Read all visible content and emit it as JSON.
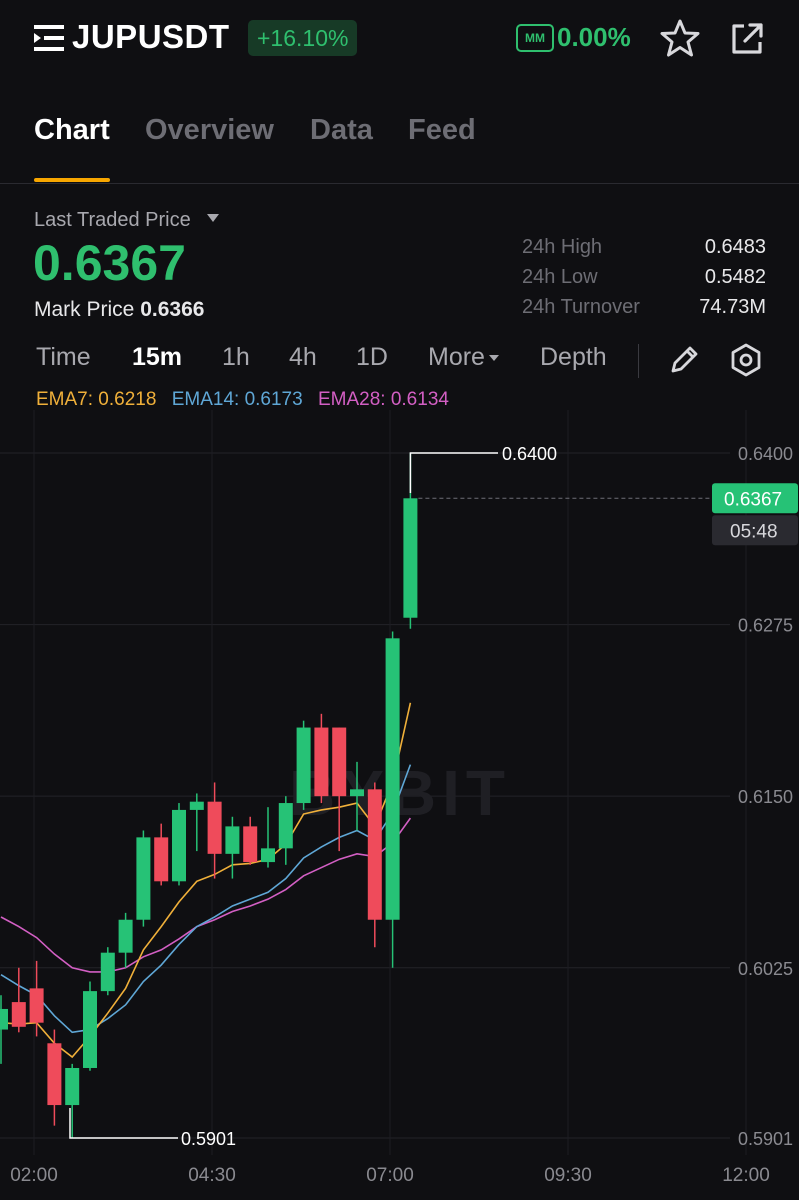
{
  "header": {
    "symbol": "JUPUSDT",
    "change_pct": "+16.10%",
    "mm_label": "MM",
    "mm_value": "0.00%",
    "icons": [
      "menu-icon",
      "star-icon",
      "share-icon"
    ]
  },
  "tabs": [
    {
      "label": "Chart",
      "active": true
    },
    {
      "label": "Overview",
      "active": false
    },
    {
      "label": "Data",
      "active": false
    },
    {
      "label": "Feed",
      "active": false
    }
  ],
  "price": {
    "ltp_label": "Last Traded Price",
    "ltp_value": "0.6367",
    "mark_label": "Mark Price",
    "mark_value": "0.6366"
  },
  "stats": [
    {
      "label": "24h High",
      "value": "0.6483"
    },
    {
      "label": "24h Low",
      "value": "0.5482"
    },
    {
      "label": "24h Turnover",
      "value": "74.73M"
    }
  ],
  "timeframes": [
    {
      "label": "Time",
      "active": false
    },
    {
      "label": "15m",
      "active": true
    },
    {
      "label": "1h",
      "active": false
    },
    {
      "label": "4h",
      "active": false
    },
    {
      "label": "1D",
      "active": false
    },
    {
      "label": "More",
      "active": false
    },
    {
      "label": "Depth",
      "active": false
    }
  ],
  "ema": [
    {
      "label": "EMA7: 0.6218",
      "color": "#f0b03a"
    },
    {
      "label": "EMA14: 0.6173",
      "color": "#5fa7d6"
    },
    {
      "label": "EMA28: 0.6134",
      "color": "#d35fc4"
    }
  ],
  "colors": {
    "up": "#26c276",
    "down": "#ef4b5b",
    "accent": "#f7a600",
    "bg": "#0f0f12"
  },
  "chart_data": {
    "type": "candlestick",
    "y_ticks": [
      "0.6400",
      "0.6275",
      "0.6150",
      "0.6025",
      "0.5901"
    ],
    "y_tick_values": [
      0.64,
      0.6275,
      0.615,
      0.6025,
      0.5901
    ],
    "x_ticks": [
      "02:00",
      "04:30",
      "07:00",
      "09:30",
      "12:00"
    ],
    "ylim": [
      0.5901,
      0.64
    ],
    "current_price": "0.6367",
    "current_price_value": 0.6367,
    "countdown": "05:48",
    "high_label": "0.6400",
    "low_label": "0.5901",
    "watermark": "BYBIT",
    "candles": [
      {
        "o": 0.598,
        "h": 0.6005,
        "l": 0.5955,
        "c": 0.5995
      },
      {
        "o": 0.6,
        "h": 0.6025,
        "l": 0.5978,
        "c": 0.5982
      },
      {
        "o": 0.601,
        "h": 0.603,
        "l": 0.5975,
        "c": 0.5985
      },
      {
        "o": 0.597,
        "h": 0.598,
        "l": 0.591,
        "c": 0.5925
      },
      {
        "o": 0.5925,
        "h": 0.5955,
        "l": 0.5901,
        "c": 0.5952
      },
      {
        "o": 0.5952,
        "h": 0.6015,
        "l": 0.595,
        "c": 0.6008
      },
      {
        "o": 0.6008,
        "h": 0.604,
        "l": 0.6005,
        "c": 0.6036
      },
      {
        "o": 0.6036,
        "h": 0.6065,
        "l": 0.6025,
        "c": 0.606
      },
      {
        "o": 0.606,
        "h": 0.6125,
        "l": 0.6055,
        "c": 0.612
      },
      {
        "o": 0.612,
        "h": 0.613,
        "l": 0.6085,
        "c": 0.6088
      },
      {
        "o": 0.6088,
        "h": 0.6145,
        "l": 0.6085,
        "c": 0.614
      },
      {
        "o": 0.614,
        "h": 0.6152,
        "l": 0.611,
        "c": 0.6146
      },
      {
        "o": 0.6146,
        "h": 0.616,
        "l": 0.609,
        "c": 0.6108
      },
      {
        "o": 0.6108,
        "h": 0.6135,
        "l": 0.609,
        "c": 0.6128
      },
      {
        "o": 0.6128,
        "h": 0.6135,
        "l": 0.61,
        "c": 0.6102
      },
      {
        "o": 0.6102,
        "h": 0.6142,
        "l": 0.6098,
        "c": 0.6112
      },
      {
        "o": 0.6112,
        "h": 0.615,
        "l": 0.61,
        "c": 0.6145
      },
      {
        "o": 0.6145,
        "h": 0.6205,
        "l": 0.614,
        "c": 0.62
      },
      {
        "o": 0.62,
        "h": 0.621,
        "l": 0.6145,
        "c": 0.615
      },
      {
        "o": 0.62,
        "h": 0.62,
        "l": 0.611,
        "c": 0.615
      },
      {
        "o": 0.615,
        "h": 0.6175,
        "l": 0.6125,
        "c": 0.6155
      },
      {
        "o": 0.6155,
        "h": 0.616,
        "l": 0.604,
        "c": 0.606
      },
      {
        "o": 0.606,
        "h": 0.627,
        "l": 0.6025,
        "c": 0.6265
      },
      {
        "o": 0.628,
        "h": 0.64,
        "l": 0.6272,
        "c": 0.6367
      }
    ],
    "ema7": [
      0.5985,
      0.5984,
      0.5985,
      0.597,
      0.596,
      0.5975,
      0.5992,
      0.601,
      0.6038,
      0.6055,
      0.6073,
      0.6088,
      0.6093,
      0.61,
      0.6101,
      0.6104,
      0.6115,
      0.6137,
      0.614,
      0.6142,
      0.6145,
      0.6128,
      0.616,
      0.6218
    ],
    "ema14": [
      0.602,
      0.6012,
      0.6005,
      0.599,
      0.5978,
      0.598,
      0.5988,
      0.5998,
      0.6015,
      0.6027,
      0.6042,
      0.6055,
      0.6062,
      0.607,
      0.6075,
      0.608,
      0.609,
      0.6105,
      0.6113,
      0.612,
      0.6125,
      0.6118,
      0.6138,
      0.6173
    ],
    "ema28": [
      0.6062,
      0.6055,
      0.6047,
      0.6035,
      0.6025,
      0.6022,
      0.6022,
      0.6025,
      0.6033,
      0.6038,
      0.6046,
      0.6055,
      0.606,
      0.6066,
      0.607,
      0.6075,
      0.6082,
      0.6092,
      0.6098,
      0.6104,
      0.6108,
      0.6106,
      0.6116,
      0.6134
    ]
  }
}
